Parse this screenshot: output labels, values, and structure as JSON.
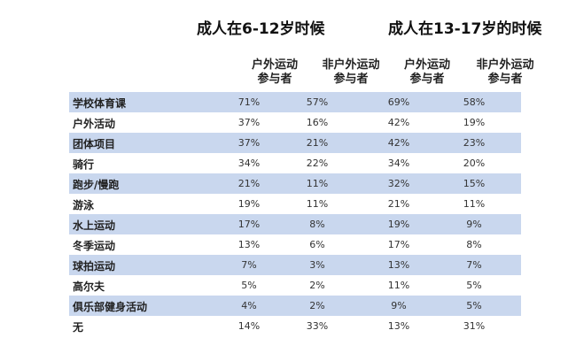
{
  "chart_data": {
    "type": "table",
    "groups": [
      "成人在6-12岁时候",
      "成人在13-17岁的时候"
    ],
    "columns": [
      {
        "line1": "户外运动",
        "line2": "参与者"
      },
      {
        "line1": "非户外运动",
        "line2": "参与者"
      },
      {
        "line1": "户外运动",
        "line2": "参与者"
      },
      {
        "line1": "非户外运动",
        "line2": "参与者"
      }
    ],
    "rows": [
      {
        "label": "学校体育课",
        "values": [
          "71%",
          "57%",
          "69%",
          "58%"
        ]
      },
      {
        "label": "户外活动",
        "values": [
          "37%",
          "16%",
          "42%",
          "19%"
        ]
      },
      {
        "label": "团体项目",
        "values": [
          "37%",
          "21%",
          "42%",
          "23%"
        ]
      },
      {
        "label": "骑行",
        "values": [
          "34%",
          "22%",
          "34%",
          "20%"
        ]
      },
      {
        "label": "跑步/慢跑",
        "values": [
          "21%",
          "11%",
          "32%",
          "15%"
        ]
      },
      {
        "label": "游泳",
        "values": [
          "19%",
          "11%",
          "21%",
          "11%"
        ]
      },
      {
        "label": "水上运动",
        "values": [
          "17%",
          "8%",
          "19%",
          "9%"
        ]
      },
      {
        "label": "冬季运动",
        "values": [
          "13%",
          "6%",
          "17%",
          "8%"
        ]
      },
      {
        "label": "球拍运动",
        "values": [
          "7%",
          "3%",
          "13%",
          "7%"
        ]
      },
      {
        "label": "高尔夫",
        "values": [
          "5%",
          "2%",
          "11%",
          "5%"
        ]
      },
      {
        "label": "俱乐部健身活动",
        "values": [
          "4%",
          "2%",
          "9%",
          "5%"
        ]
      },
      {
        "label": "无",
        "values": [
          "14%",
          "33%",
          "13%",
          "31%"
        ]
      }
    ],
    "row_shade_color": "#c9d7ee"
  }
}
